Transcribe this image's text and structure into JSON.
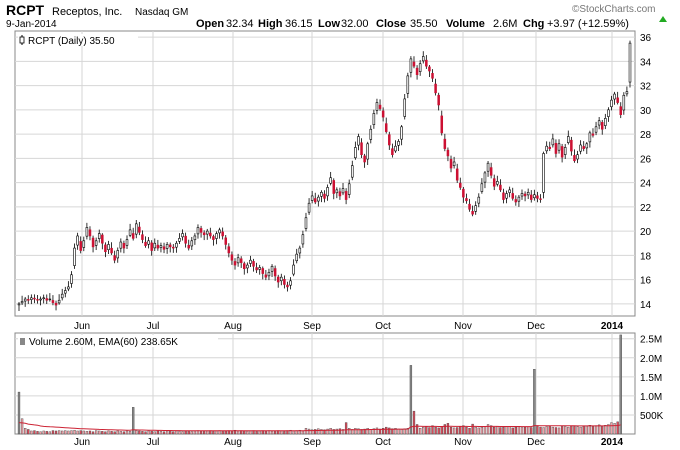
{
  "header": {
    "symbol": "RCPT",
    "company": "Receptos, Inc.",
    "exchange": "Nasdaq GM",
    "date": "9-Jan-2014",
    "open_label": "Open",
    "open": "32.34",
    "high_label": "High",
    "high": "36.15",
    "low_label": "Low",
    "low": "32.00",
    "close_label": "Close",
    "close": "35.50",
    "volume_label": "Volume",
    "volume": "2.6M",
    "chg_label": "Chg",
    "chg": "+3.97 (+12.59%)",
    "watermark": "©StockCharts.com"
  },
  "chart_data": [
    {
      "type": "candlestick",
      "legend": "RCPT (Daily) 35.50",
      "ylim": [
        13,
        36.5
      ],
      "y_ticks": [
        14,
        16,
        18,
        20,
        22,
        24,
        26,
        28,
        30,
        32,
        34,
        36
      ],
      "x_labels": [
        "Jun",
        "Jul",
        "Aug",
        "Sep",
        "Oct",
        "Nov",
        "Dec",
        "2014"
      ],
      "grid": true,
      "up_color": "#ffffff",
      "down_color": "#cc1133",
      "closes": [
        14.0,
        14.2,
        14.4,
        14.3,
        14.5,
        14.4,
        14.3,
        14.4,
        14.5,
        14.3,
        14.4,
        14.1,
        13.9,
        14.3,
        14.8,
        15.1,
        15.4,
        16.4,
        18.6,
        19.6,
        18.4,
        19.2,
        20.3,
        19.6,
        18.7,
        19.2,
        19.8,
        19.0,
        18.3,
        18.9,
        18.2,
        17.6,
        18.4,
        19.1,
        18.6,
        19.3,
        20.1,
        19.4,
        20.6,
        19.9,
        19.3,
        18.8,
        19.2,
        18.4,
        19.0,
        18.6,
        18.8,
        18.5,
        18.9,
        18.7,
        18.6,
        19.0,
        19.4,
        19.8,
        19.0,
        18.6,
        19.2,
        19.6,
        20.3,
        19.9,
        19.7,
        20.0,
        19.6,
        19.3,
        19.8,
        20.1,
        19.6,
        18.9,
        18.2,
        17.6,
        17.2,
        17.8,
        17.4,
        16.9,
        17.2,
        17.6,
        17.1,
        16.8,
        17.0,
        16.5,
        16.2,
        16.6,
        17.1,
        16.3,
        15.8,
        16.2,
        15.6,
        15.4,
        15.9,
        17.2,
        18.1,
        18.6,
        19.7,
        21.1,
        22.3,
        22.9,
        22.4,
        22.8,
        23.2,
        22.7,
        23.6,
        24.4,
        23.1,
        23.4,
        22.9,
        23.5,
        22.6,
        23.9,
        25.4,
        26.9,
        27.8,
        26.3,
        25.7,
        27.2,
        28.4,
        29.7,
        30.6,
        30.1,
        29.4,
        28.2,
        27.1,
        26.3,
        27.0,
        27.4,
        28.6,
        30.9,
        32.8,
        34.2,
        33.6,
        32.9,
        33.8,
        34.4,
        33.6,
        33.2,
        32.6,
        31.4,
        30.4,
        28.1,
        26.8,
        26.2,
        25.2,
        25.7,
        24.2,
        23.6,
        22.8,
        22.5,
        21.8,
        21.4,
        22.1,
        22.8,
        23.9,
        24.8,
        25.6,
        24.6,
        23.7,
        24.1,
        23.4,
        22.6,
        23.1,
        23.4,
        22.7,
        22.4,
        22.8,
        23.1,
        22.9,
        23.2,
        22.6,
        23.0,
        22.7,
        22.6,
        26.4,
        27.0,
        26.8,
        27.6,
        26.4,
        27.2,
        26.1,
        26.9,
        27.8,
        26.6,
        25.8,
        26.3,
        27.1,
        26.8,
        27.2,
        28.1,
        27.9,
        28.6,
        29.1,
        28.4,
        29.3,
        30.0,
        30.8,
        31.3,
        30.6,
        29.6,
        31.2,
        31.5,
        35.5
      ],
      "series": [
        {
          "name": "RCPT",
          "last": 35.5
        }
      ]
    },
    {
      "type": "bar",
      "legend": "Volume 2.60M, EMA(60) 238.65K",
      "y_ticks": [
        500000,
        1000000,
        1500000,
        2000000,
        2500000
      ],
      "y_tick_labels": [
        "500K",
        "1.0M",
        "1.5M",
        "2.0M",
        "2.5M"
      ],
      "ylim": [
        0,
        2650000
      ],
      "volumes": [
        1100000,
        400000,
        150000,
        120000,
        80000,
        90000,
        70000,
        60000,
        80000,
        70000,
        60000,
        90000,
        80000,
        90000,
        80000,
        90000,
        80000,
        90000,
        100000,
        80000,
        90000,
        80000,
        70000,
        80000,
        60000,
        90000,
        80000,
        70000,
        60000,
        80000,
        70000,
        60000,
        80000,
        70000,
        60000,
        80000,
        70000,
        700000,
        90000,
        80000,
        70000,
        60000,
        80000,
        70000,
        60000,
        80000,
        70000,
        60000,
        80000,
        70000,
        60000,
        80000,
        70000,
        60000,
        80000,
        70000,
        60000,
        80000,
        90000,
        80000,
        70000,
        80000,
        90000,
        70000,
        80000,
        90000,
        70000,
        80000,
        90000,
        80000,
        100000,
        80000,
        90000,
        80000,
        70000,
        80000,
        90000,
        70000,
        80000,
        90000,
        80000,
        90000,
        70000,
        80000,
        90000,
        80000,
        70000,
        90000,
        100000,
        80000,
        90000,
        100000,
        80000,
        150000,
        130000,
        110000,
        120000,
        140000,
        120000,
        110000,
        130000,
        150000,
        120000,
        130000,
        140000,
        120000,
        300000,
        150000,
        120000,
        150000,
        140000,
        120000,
        130000,
        150000,
        120000,
        140000,
        160000,
        130000,
        150000,
        180000,
        160000,
        140000,
        150000,
        130000,
        120000,
        140000,
        150000,
        1800000,
        600000,
        250000,
        150000,
        180000,
        200000,
        170000,
        220000,
        180000,
        160000,
        200000,
        250000,
        280000,
        180000,
        160000,
        170000,
        200000,
        220000,
        180000,
        150000,
        260000,
        180000,
        160000,
        180000,
        200000,
        250000,
        220000,
        180000,
        200000,
        170000,
        180000,
        200000,
        190000,
        160000,
        180000,
        200000,
        170000,
        180000,
        190000,
        170000,
        1700000,
        200000,
        180000,
        170000,
        190000,
        200000,
        180000,
        170000,
        160000,
        200000,
        190000,
        180000,
        210000,
        200000,
        190000,
        180000,
        200000,
        210000,
        230000,
        200000,
        220000,
        240000,
        200000,
        230000,
        250000,
        300000,
        280000,
        320000,
        2600000
      ],
      "ema": [
        300000,
        290000,
        280000,
        260000,
        250000,
        240000,
        230000,
        210000,
        200000,
        195000,
        190000,
        185000,
        180000,
        175000,
        170000,
        165000,
        160000,
        155000,
        150000,
        145000,
        140000,
        137000,
        134000,
        131000,
        128000,
        125000,
        122000,
        119000,
        116000,
        113000,
        110000,
        108000,
        106000,
        104000,
        102000,
        100000,
        98000,
        110000,
        108000,
        106000,
        104000,
        102000,
        100000,
        98000,
        96000,
        95000,
        94000,
        93000,
        92000,
        91000,
        90000,
        89000,
        88000,
        87000,
        87000,
        86000,
        86000,
        85000,
        85000,
        85000,
        85000,
        84000,
        84000,
        84000,
        84000,
        84000,
        84000,
        84000,
        84000,
        84000,
        84000,
        84000,
        84000,
        84000,
        84000,
        84000,
        84000,
        84000,
        84000,
        84000,
        84000,
        84000,
        84000,
        84000,
        84000,
        84000,
        84000,
        84000,
        85000,
        85000,
        85000,
        86000,
        86000,
        88000,
        89000,
        90000,
        91000,
        93000,
        94000,
        95000,
        96000,
        98000,
        99000,
        100000,
        102000,
        103000,
        109000,
        110000,
        111000,
        112000,
        113000,
        114000,
        115000,
        116000,
        117000,
        118000,
        120000,
        121000,
        122000,
        124000,
        125000,
        126000,
        127000,
        128000,
        128000,
        129000,
        130000,
        185000,
        200000,
        202000,
        201000,
        200000,
        200000,
        199000,
        200000,
        199000,
        198000,
        198000,
        200000,
        203000,
        202000,
        200000,
        199000,
        199000,
        200000,
        199000,
        198000,
        200000,
        199000,
        198000,
        197000,
        197000,
        199000,
        200000,
        199000,
        199000,
        198000,
        198000,
        198000,
        198000,
        197000,
        196000,
        196000,
        195000,
        195000,
        195000,
        194000,
        220000,
        220000,
        219000,
        218000,
        218000,
        218000,
        217000,
        216000,
        215000,
        215000,
        214000,
        214000,
        214000,
        214000,
        213000,
        213000,
        213000,
        213000,
        214000,
        213000,
        213000,
        214000,
        213000,
        214000,
        215000,
        218000,
        220000,
        224000,
        238650
      ],
      "grid": true,
      "volume_color": "#888888"
    }
  ]
}
